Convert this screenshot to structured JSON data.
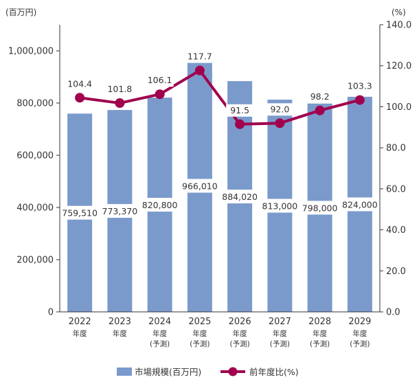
{
  "chart_data": {
    "type": "bar+line",
    "title": "",
    "left_axis_unit": "(百万円)",
    "right_axis_unit": "(%)",
    "categories": [
      {
        "year": "2022",
        "line1": "年度",
        "line2": ""
      },
      {
        "year": "2023",
        "line1": "年度",
        "line2": ""
      },
      {
        "year": "2024",
        "line1": "年度",
        "line2": "(予測)"
      },
      {
        "year": "2025",
        "line1": "年度",
        "line2": "(予測)"
      },
      {
        "year": "2026",
        "line1": "年度",
        "line2": "(予測)"
      },
      {
        "year": "2027",
        "line1": "年度",
        "line2": "(予測)"
      },
      {
        "year": "2028",
        "line1": "年度",
        "line2": "(予測)"
      },
      {
        "year": "2029",
        "line1": "年度",
        "line2": "(予測)"
      }
    ],
    "series": [
      {
        "name": "市場規模(百万円)",
        "type": "bar",
        "axis": "left",
        "values": [
          759510,
          773370,
          820800,
          966010,
          884020,
          813000,
          798000,
          824000
        ],
        "labels": [
          "759,510",
          "773,370",
          "820,800",
          "966,010",
          "884,020",
          "813,000",
          "798,000",
          "824,000"
        ]
      },
      {
        "name": "前年度比(%)",
        "type": "line",
        "axis": "right",
        "values": [
          104.4,
          101.8,
          106.1,
          117.7,
          91.5,
          92.0,
          98.2,
          103.3
        ],
        "labels": [
          "104.4",
          "101.8",
          "106.1",
          "117.7",
          "91.5",
          "92.0",
          "98.2",
          "103.3"
        ]
      }
    ],
    "left_axis": {
      "ylim": [
        0,
        1100000
      ],
      "ticks": [
        0,
        200000,
        400000,
        600000,
        800000,
        1000000
      ],
      "tick_labels": [
        "0",
        "200,000",
        "400,000",
        "600,000",
        "800,000",
        "1,000,000"
      ]
    },
    "right_axis": {
      "ylim": [
        0,
        140
      ],
      "ticks": [
        0,
        20,
        40,
        60,
        80,
        100,
        120,
        140
      ],
      "tick_labels": [
        "0.0",
        "20.0",
        "40.0",
        "60.0",
        "80.0",
        "100.0",
        "120.0",
        "140.0"
      ]
    },
    "grid": false,
    "legend_position": "bottom-center",
    "colors": {
      "bar": "#7b9acc",
      "line": "#a0004d",
      "axis": "#333333"
    }
  }
}
